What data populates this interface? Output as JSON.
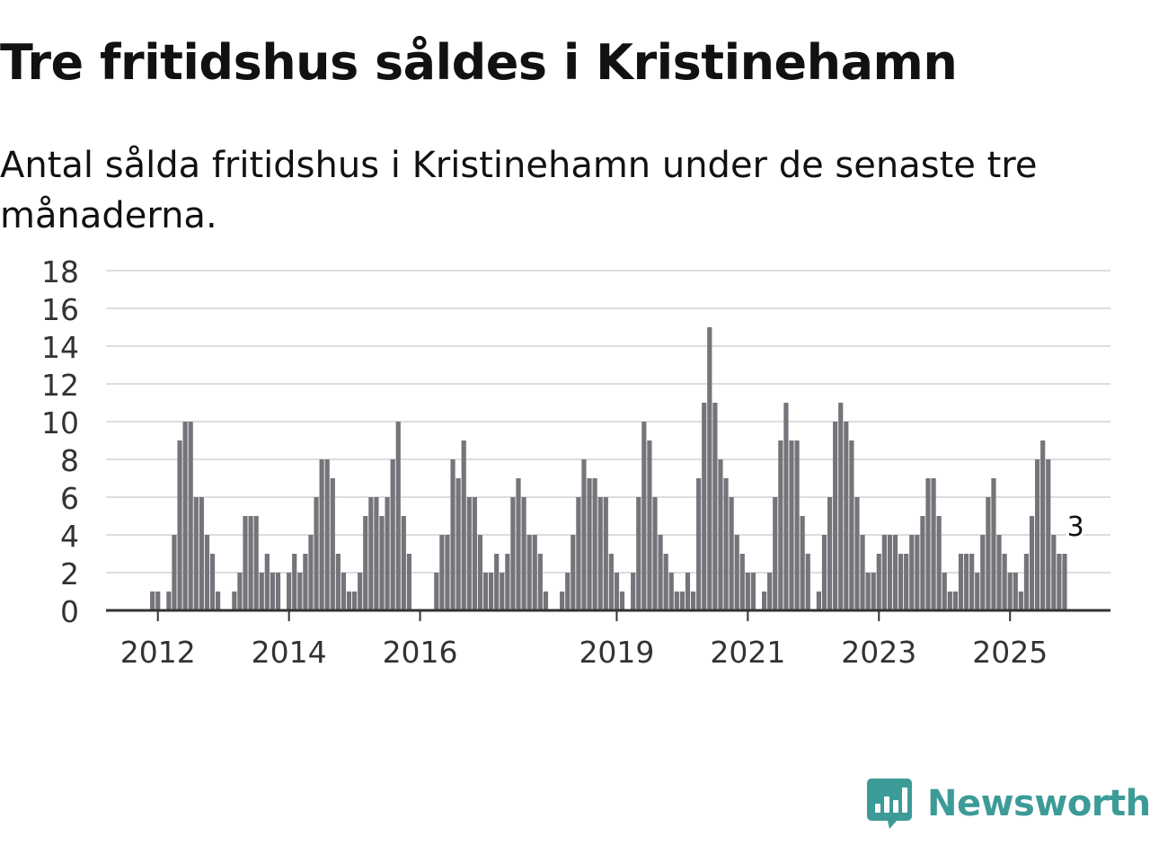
{
  "title": "Tre fritidshus såldes i Kristinehamn",
  "subtitle": "Antal sålda fritidshus i Kristinehamn under de senaste tre månaderna.",
  "brand": {
    "name": "Newsworthy",
    "color": "#3d9b97",
    "icon": "newsworthy-chart-bubble-icon"
  },
  "colors": {
    "bar": "#75747a",
    "highlight": "#1a9e96",
    "grid": "#dddddd",
    "axis": "#333333"
  },
  "chart_data": {
    "type": "bar",
    "title": "Tre fritidshus såldes i Kristinehamn",
    "xlabel": "",
    "ylabel": "",
    "ylim": [
      0,
      18
    ],
    "yticks": [
      0,
      2,
      4,
      6,
      8,
      10,
      12,
      14,
      16,
      18
    ],
    "xticks": [
      {
        "label": "2012",
        "index": 9
      },
      {
        "label": "2014",
        "index": 33
      },
      {
        "label": "2016",
        "index": 57
      },
      {
        "label": "2019",
        "index": 93
      },
      {
        "label": "2021",
        "index": 117
      },
      {
        "label": "2023",
        "index": 141
      },
      {
        "label": "2025",
        "index": 165
      }
    ],
    "values": [
      0,
      0,
      0,
      0,
      0,
      0,
      0,
      0,
      1,
      1,
      0,
      1,
      4,
      9,
      10,
      10,
      6,
      6,
      4,
      3,
      1,
      0,
      0,
      1,
      2,
      5,
      5,
      5,
      2,
      3,
      2,
      2,
      0,
      2,
      3,
      2,
      3,
      4,
      6,
      8,
      8,
      7,
      3,
      2,
      1,
      1,
      2,
      5,
      6,
      6,
      5,
      6,
      8,
      10,
      5,
      3,
      0,
      0,
      0,
      0,
      2,
      4,
      4,
      8,
      7,
      9,
      6,
      6,
      4,
      2,
      2,
      3,
      2,
      3,
      6,
      7,
      6,
      4,
      4,
      3,
      1,
      0,
      0,
      1,
      2,
      4,
      6,
      8,
      7,
      7,
      6,
      6,
      3,
      2,
      1,
      0,
      2,
      6,
      10,
      9,
      6,
      4,
      3,
      2,
      1,
      1,
      2,
      1,
      7,
      11,
      15,
      11,
      8,
      7,
      6,
      4,
      3,
      2,
      2,
      0,
      1,
      2,
      6,
      9,
      11,
      9,
      9,
      5,
      3,
      0,
      1,
      4,
      6,
      10,
      11,
      10,
      9,
      6,
      4,
      2,
      2,
      3,
      4,
      4,
      4,
      3,
      3,
      4,
      4,
      5,
      7,
      7,
      5,
      2,
      1,
      1,
      3,
      3,
      3,
      2,
      4,
      6,
      7,
      4,
      3,
      2,
      2,
      1,
      3,
      5,
      8,
      9,
      8,
      4,
      3,
      3
    ],
    "highlight_index": 177,
    "annotation": {
      "index": 177,
      "value": 3,
      "label": "3"
    }
  }
}
